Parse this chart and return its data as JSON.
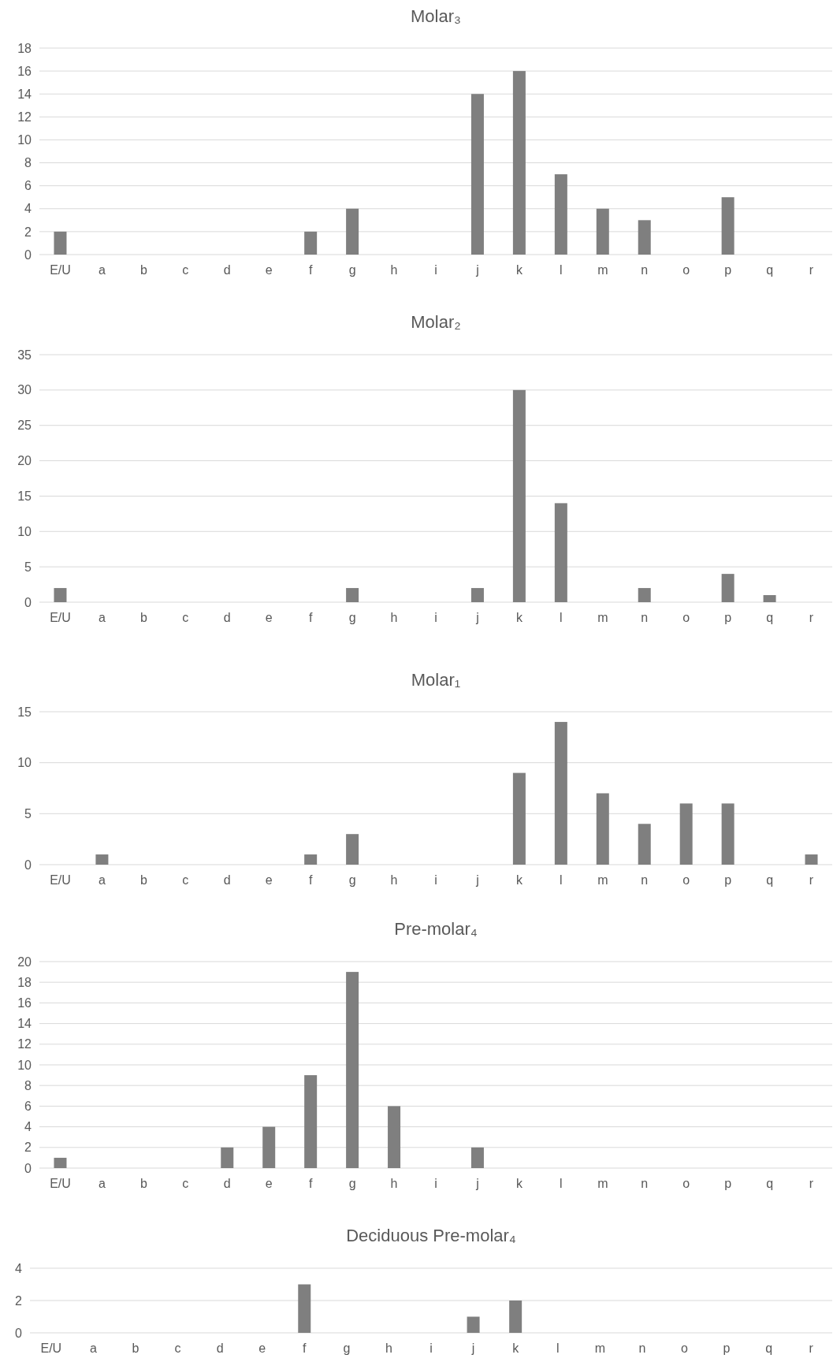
{
  "chart_data": [
    {
      "type": "bar",
      "title": "Molar₃",
      "categories": [
        "E/U",
        "a",
        "b",
        "c",
        "d",
        "e",
        "f",
        "g",
        "h",
        "i",
        "j",
        "k",
        "l",
        "m",
        "n",
        "o",
        "p",
        "q",
        "r"
      ],
      "values": [
        2,
        0,
        0,
        0,
        0,
        0,
        2,
        4,
        0,
        0,
        14,
        16,
        7,
        4,
        3,
        0,
        5,
        0,
        0
      ],
      "color": "#7f7f7f",
      "ylim": [
        0,
        18
      ],
      "yticks": [
        0,
        2,
        4,
        6,
        8,
        10,
        12,
        14,
        16,
        18
      ],
      "grid": "y"
    },
    {
      "type": "bar",
      "title": "Molar₂",
      "categories": [
        "E/U",
        "a",
        "b",
        "c",
        "d",
        "e",
        "f",
        "g",
        "h",
        "i",
        "j",
        "k",
        "l",
        "m",
        "n",
        "o",
        "p",
        "q",
        "r"
      ],
      "values": [
        2,
        0,
        0,
        0,
        0,
        0,
        0,
        2,
        0,
        0,
        2,
        30,
        14,
        0,
        2,
        0,
        4,
        1,
        0
      ],
      "color": "#7f7f7f",
      "ylim": [
        0,
        35
      ],
      "yticks": [
        0,
        5,
        10,
        15,
        20,
        25,
        30,
        35
      ],
      "grid": "y"
    },
    {
      "type": "bar",
      "title": "Molar₁",
      "categories": [
        "E/U",
        "a",
        "b",
        "c",
        "d",
        "e",
        "f",
        "g",
        "h",
        "i",
        "j",
        "k",
        "l",
        "m",
        "n",
        "o",
        "p",
        "q",
        "r"
      ],
      "values": [
        0,
        1,
        0,
        0,
        0,
        0,
        1,
        3,
        0,
        0,
        0,
        9,
        14,
        7,
        4,
        6,
        6,
        0,
        1
      ],
      "color": "#7f7f7f",
      "ylim": [
        0,
        15
      ],
      "yticks": [
        0,
        5,
        10,
        15
      ],
      "grid": "y"
    },
    {
      "type": "bar",
      "title": "Pre-molar₄",
      "categories": [
        "E/U",
        "a",
        "b",
        "c",
        "d",
        "e",
        "f",
        "g",
        "h",
        "i",
        "j",
        "k",
        "l",
        "m",
        "n",
        "o",
        "p",
        "q",
        "r"
      ],
      "values": [
        1,
        0,
        0,
        0,
        2,
        4,
        9,
        19,
        6,
        0,
        2,
        0,
        0,
        0,
        0,
        0,
        0,
        0,
        0
      ],
      "color": "#7f7f7f",
      "ylim": [
        0,
        20
      ],
      "yticks": [
        0,
        2,
        4,
        6,
        8,
        10,
        12,
        14,
        16,
        18,
        20
      ],
      "grid": "y"
    },
    {
      "type": "bar",
      "title": "Deciduous Pre-molar₄",
      "categories": [
        "E/U",
        "a",
        "b",
        "c",
        "d",
        "e",
        "f",
        "g",
        "h",
        "i",
        "j",
        "k",
        "l",
        "m",
        "n",
        "o",
        "p",
        "q",
        "r"
      ],
      "values": [
        0,
        0,
        0,
        0,
        0,
        0,
        3,
        0,
        0,
        0,
        1,
        2,
        0,
        0,
        0,
        0,
        0,
        0,
        0
      ],
      "color": "#7f7f7f",
      "ylim": [
        0,
        4
      ],
      "yticks": [
        0,
        2,
        4
      ],
      "grid": "y"
    }
  ]
}
